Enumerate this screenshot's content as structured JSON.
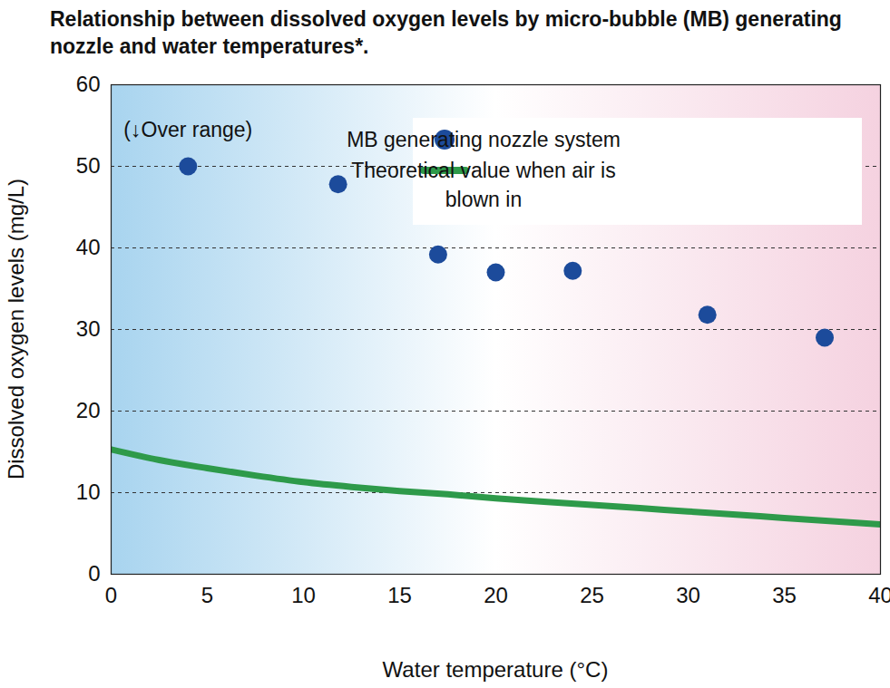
{
  "chart_data": {
    "type": "scatter",
    "title": "Relationship between dissolved oxygen levels by micro-bubble (MB) generating nozzle and water temperatures*.",
    "x_label": "Water temperature (°C)",
    "y_label": "Dissolved oxygen levels (mg/L)",
    "xlim": [
      0,
      40
    ],
    "xticks": [
      0,
      5,
      10,
      15,
      20,
      25,
      30,
      35,
      40
    ],
    "ylim": [
      0,
      60
    ],
    "yticks": [
      0,
      10,
      20,
      30,
      40,
      50,
      60
    ],
    "grid": true,
    "legend": "top-right",
    "annotations": [
      {
        "text": "(↓Over range)"
      }
    ],
    "series": [
      {
        "name": "MB generating nozzle system",
        "type": "scatter",
        "marker": "circle",
        "color": "#1c4b9b",
        "x": [
          4,
          11.8,
          17,
          20,
          24,
          31,
          37.1
        ],
        "values": [
          50,
          47.8,
          39.2,
          37,
          37.2,
          31.8,
          29
        ]
      },
      {
        "name": "Theoretical value when air is blown in",
        "type": "line",
        "line_style": "solid",
        "color": "#2e9a4a",
        "x": [
          0,
          2.5,
          5,
          7.5,
          10,
          12.5,
          15,
          17.5,
          20,
          22.5,
          25,
          27.5,
          30,
          32.5,
          35,
          37.5,
          40
        ],
        "values": [
          15.3,
          14,
          13,
          12.1,
          11.3,
          10.7,
          10.2,
          9.8,
          9.3,
          8.9,
          8.5,
          8.1,
          7.7,
          7.3,
          6.9,
          6.5,
          6.1
        ]
      }
    ]
  }
}
